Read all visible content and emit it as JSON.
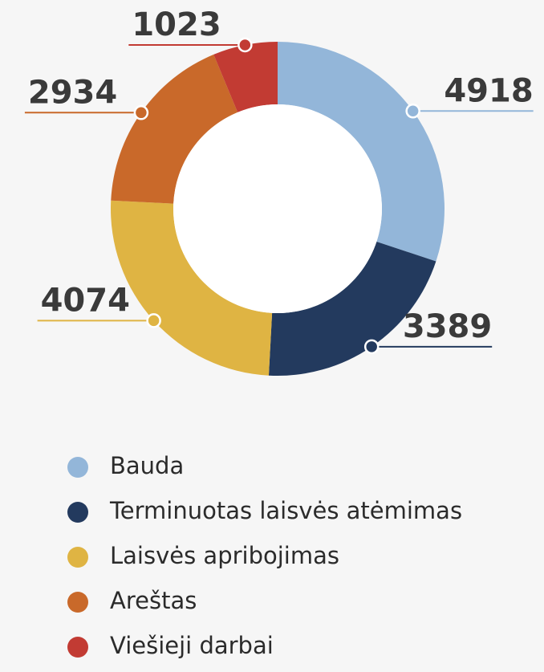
{
  "chart_data": {
    "type": "donut",
    "categories": [
      "Bauda",
      "Terminuotas laisvės atėmimas",
      "Laisvės apribojimas",
      "Areštas",
      "Viešieji darbai"
    ],
    "values": [
      4918,
      3389,
      4074,
      2934,
      1023
    ],
    "colors": [
      "#93b6d9",
      "#233a5e",
      "#dfb443",
      "#c9692a",
      "#c23b33"
    ],
    "legend": "bottom"
  }
}
